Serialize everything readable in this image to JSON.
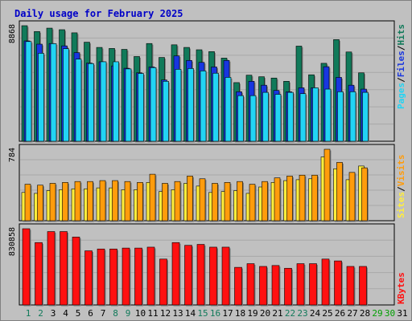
{
  "title": "Daily usage for February 2025",
  "colors": {
    "hits": "#117a5a",
    "files": "#1836e0",
    "pages": "#22d4f4",
    "visits": "#ff9c0c",
    "sites": "#ffee3c",
    "kbytes": "#ff1010",
    "title": "#0000c8",
    "weekend": "#117a5a",
    "future": "#00a000",
    "panel": "#c0c0c0",
    "grid": "#a8a8a8"
  },
  "chart_data": [
    {
      "type": "bar",
      "panel": "pages-files-hits",
      "ymax_label": "8868",
      "ymax": 8868,
      "legend": [
        "Pages",
        "Files",
        "Hits"
      ],
      "series": [
        {
          "name": "Hits",
          "values": [
            8868,
            8420,
            8680,
            8560,
            8320,
            7600,
            7200,
            7120,
            7050,
            6500,
            7500,
            6430,
            7400,
            7200,
            7020,
            6880,
            6380,
            4500,
            5070,
            4950,
            4850,
            4600,
            7300,
            5100,
            5980,
            7800,
            6850,
            5250
          ]
        },
        {
          "name": "Files",
          "values": [
            7700,
            7450,
            7500,
            7320,
            6800,
            6000,
            6100,
            5780,
            5600,
            5250,
            5700,
            4700,
            6550,
            6200,
            6050,
            5700,
            6200,
            3800,
            4600,
            4300,
            3900,
            3800,
            4100,
            4100,
            5720,
            4900,
            4300,
            4000
          ]
        },
        {
          "name": "Pages",
          "values": [
            7650,
            6750,
            7490,
            7100,
            6300,
            5960,
            6100,
            6100,
            5550,
            5200,
            5650,
            4600,
            5520,
            5580,
            5400,
            5220,
            4900,
            3500,
            3500,
            3750,
            3600,
            3750,
            3650,
            4100,
            4000,
            3800,
            3800,
            3750
          ]
        }
      ]
    },
    {
      "type": "bar",
      "panel": "visits-sites",
      "ymax_label": "784",
      "ymax": 784,
      "legend": [
        "Sites",
        "Visits"
      ],
      "series": [
        {
          "name": "Visits",
          "values": [
            400,
            390,
            410,
            420,
            430,
            430,
            440,
            440,
            430,
            420,
            510,
            410,
            430,
            490,
            460,
            410,
            420,
            430,
            400,
            430,
            470,
            490,
            500,
            500,
            784,
            640,
            530,
            580
          ]
        },
        {
          "name": "Sites",
          "values": [
            310,
            300,
            330,
            340,
            350,
            350,
            360,
            360,
            340,
            340,
            420,
            320,
            340,
            410,
            380,
            310,
            320,
            330,
            300,
            370,
            420,
            440,
            450,
            460,
            700,
            570,
            450,
            600
          ]
        }
      ]
    },
    {
      "type": "bar",
      "panel": "kbytes",
      "ymax_label": "830858",
      "ymax": 830858,
      "legend": [
        "KBytes"
      ],
      "series": [
        {
          "name": "KBytes",
          "values": [
            830858,
            680000,
            800000,
            800000,
            740000,
            590000,
            610000,
            610000,
            620000,
            620000,
            630000,
            500000,
            680000,
            650000,
            660000,
            630000,
            630000,
            410000,
            450000,
            420000,
            430000,
            400000,
            450000,
            450000,
            500000,
            480000,
            420000,
            420000
          ]
        }
      ]
    }
  ],
  "days": [
    {
      "label": "1",
      "kind": "weekend"
    },
    {
      "label": "2",
      "kind": "weekend"
    },
    {
      "label": "3",
      "kind": "weekday"
    },
    {
      "label": "4",
      "kind": "weekday"
    },
    {
      "label": "5",
      "kind": "weekday"
    },
    {
      "label": "6",
      "kind": "weekday"
    },
    {
      "label": "7",
      "kind": "weekday"
    },
    {
      "label": "8",
      "kind": "weekend"
    },
    {
      "label": "9",
      "kind": "weekend"
    },
    {
      "label": "10",
      "kind": "weekday"
    },
    {
      "label": "11",
      "kind": "weekday"
    },
    {
      "label": "12",
      "kind": "weekday"
    },
    {
      "label": "13",
      "kind": "weekday"
    },
    {
      "label": "14",
      "kind": "weekday"
    },
    {
      "label": "15",
      "kind": "weekend"
    },
    {
      "label": "16",
      "kind": "weekend"
    },
    {
      "label": "17",
      "kind": "weekday"
    },
    {
      "label": "18",
      "kind": "weekday"
    },
    {
      "label": "19",
      "kind": "weekday"
    },
    {
      "label": "20",
      "kind": "weekday"
    },
    {
      "label": "21",
      "kind": "weekday"
    },
    {
      "label": "22",
      "kind": "weekend"
    },
    {
      "label": "23",
      "kind": "weekend"
    },
    {
      "label": "24",
      "kind": "weekday"
    },
    {
      "label": "25",
      "kind": "weekday"
    },
    {
      "label": "26",
      "kind": "weekday"
    },
    {
      "label": "27",
      "kind": "weekday"
    },
    {
      "label": "28",
      "kind": "weekday"
    },
    {
      "label": "29",
      "kind": "future"
    },
    {
      "label": "30",
      "kind": "future"
    },
    {
      "label": "31",
      "kind": "weekday"
    }
  ]
}
